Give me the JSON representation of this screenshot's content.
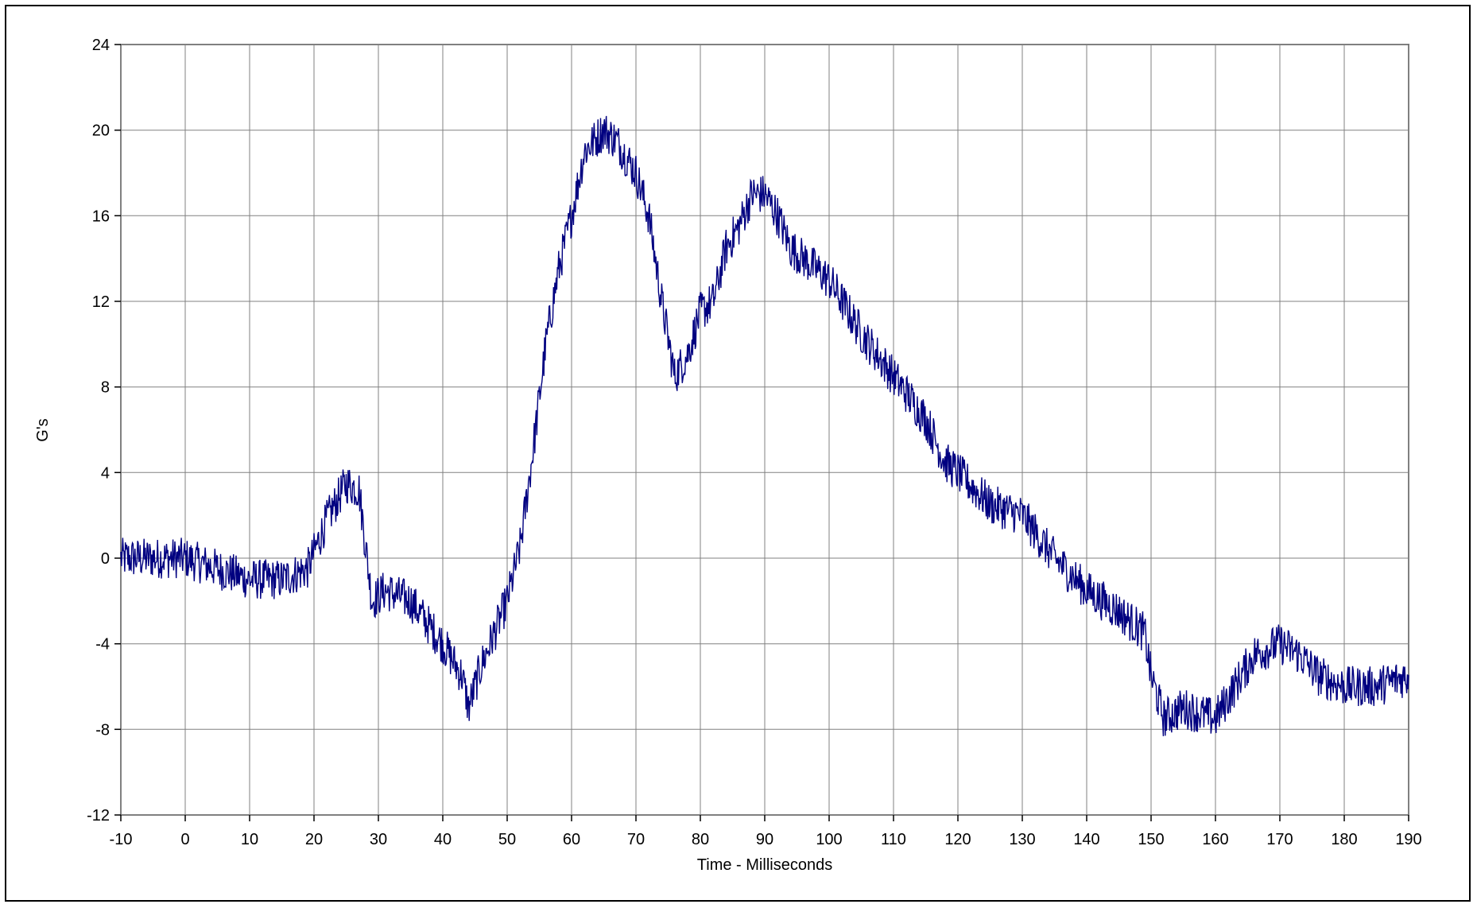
{
  "chart_data": {
    "type": "line",
    "title": "",
    "xlabel": "Time - Milliseconds",
    "ylabel": "G's",
    "xlim": [
      -10,
      190
    ],
    "ylim": [
      -12,
      24
    ],
    "x_ticks": [
      -10,
      0,
      10,
      20,
      30,
      40,
      50,
      60,
      70,
      80,
      90,
      100,
      110,
      120,
      130,
      140,
      150,
      160,
      170,
      180,
      190
    ],
    "y_ticks": [
      -12,
      -8,
      -4,
      0,
      4,
      8,
      12,
      16,
      20,
      24
    ],
    "grid": true,
    "legend": "none",
    "line_color": "#000080",
    "series": [
      {
        "x": [
          -10,
          -5,
          0,
          5,
          10,
          15,
          19,
          22,
          25,
          27,
          29,
          31,
          35,
          40,
          43,
          44,
          46,
          50,
          52,
          54,
          56,
          58,
          60,
          62,
          65,
          67,
          70,
          72,
          74,
          76,
          78,
          80,
          82,
          84,
          86,
          88,
          90,
          92,
          94,
          96,
          100,
          105,
          110,
          115,
          118,
          120,
          125,
          130,
          135,
          140,
          145,
          149,
          150,
          152,
          155,
          160,
          163,
          166,
          170,
          173,
          176,
          180,
          185,
          190
        ],
        "y": [
          0,
          0,
          0,
          -0.5,
          -1,
          -1,
          -0.5,
          1.8,
          3.5,
          3.2,
          -2,
          -1.5,
          -2,
          -4,
          -5.5,
          -7,
          -5,
          -2,
          0.5,
          5,
          10,
          13.5,
          16,
          19,
          20,
          19.5,
          18,
          16,
          12,
          8.5,
          9.5,
          11.5,
          12,
          14.5,
          15.5,
          17,
          17,
          16,
          14.5,
          14,
          13,
          10.5,
          8.5,
          6.5,
          4.5,
          4,
          2.5,
          2,
          0,
          -1.5,
          -2.5,
          -3.5,
          -5.5,
          -7.5,
          -7,
          -7.5,
          -6,
          -4.5,
          -4,
          -4.5,
          -5.5,
          -6,
          -6,
          -5.5
        ],
        "noise": 0.6
      }
    ]
  }
}
